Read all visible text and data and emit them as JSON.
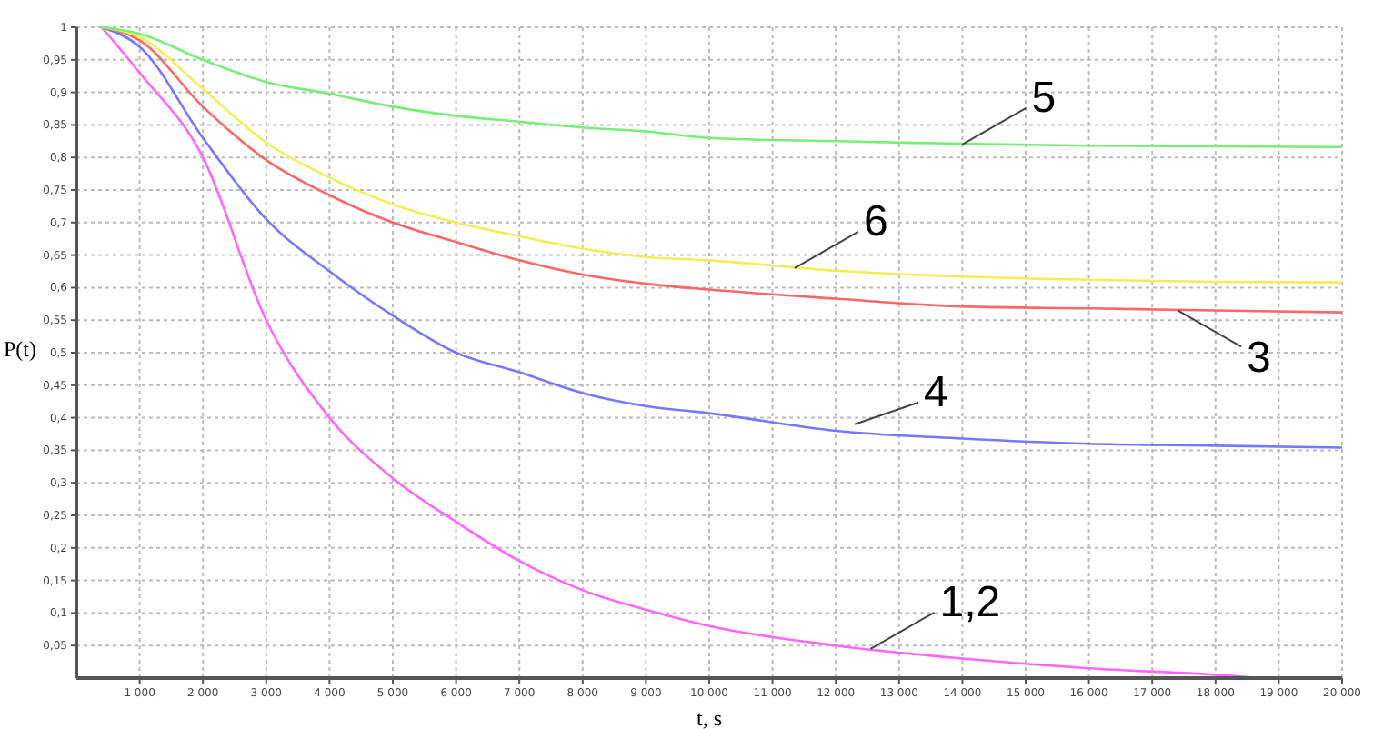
{
  "chart_data": {
    "type": "line",
    "xlabel": "t, s",
    "ylabel": "P(t)",
    "xlim": [
      0,
      20000
    ],
    "ylim": [
      0,
      1
    ],
    "xticks": [
      {
        "value": 1000,
        "label": "1 000"
      },
      {
        "value": 2000,
        "label": "2 000"
      },
      {
        "value": 3000,
        "label": "3 000"
      },
      {
        "value": 4000,
        "label": "4 000"
      },
      {
        "value": 5000,
        "label": "5 000"
      },
      {
        "value": 6000,
        "label": "6 000"
      },
      {
        "value": 7000,
        "label": "7 000"
      },
      {
        "value": 8000,
        "label": "8 000"
      },
      {
        "value": 9000,
        "label": "9 000"
      },
      {
        "value": 10000,
        "label": "10 000"
      },
      {
        "value": 11000,
        "label": "11 000"
      },
      {
        "value": 12000,
        "label": "12 000"
      },
      {
        "value": 13000,
        "label": "13 000"
      },
      {
        "value": 14000,
        "label": "14 000"
      },
      {
        "value": 15000,
        "label": "15 000"
      },
      {
        "value": 16000,
        "label": "16 000"
      },
      {
        "value": 17000,
        "label": "17 000"
      },
      {
        "value": 18000,
        "label": "18 000"
      },
      {
        "value": 19000,
        "label": "19 000"
      },
      {
        "value": 20000,
        "label": "20 000"
      }
    ],
    "yticks": [
      {
        "value": 0.05,
        "label": "0,05"
      },
      {
        "value": 0.1,
        "label": "0,1"
      },
      {
        "value": 0.15,
        "label": "0,15"
      },
      {
        "value": 0.2,
        "label": "0,2"
      },
      {
        "value": 0.25,
        "label": "0,25"
      },
      {
        "value": 0.3,
        "label": "0,3"
      },
      {
        "value": 0.35,
        "label": "0,35"
      },
      {
        "value": 0.4,
        "label": "0,4"
      },
      {
        "value": 0.45,
        "label": "0,45"
      },
      {
        "value": 0.5,
        "label": "0,5"
      },
      {
        "value": 0.55,
        "label": "0,55"
      },
      {
        "value": 0.6,
        "label": "0,6"
      },
      {
        "value": 0.65,
        "label": "0,65"
      },
      {
        "value": 0.7,
        "label": "0,7"
      },
      {
        "value": 0.75,
        "label": "0,75"
      },
      {
        "value": 0.8,
        "label": "0,8"
      },
      {
        "value": 0.85,
        "label": "0,85"
      },
      {
        "value": 0.9,
        "label": "0,9"
      },
      {
        "value": 0.95,
        "label": "0,95"
      },
      {
        "value": 1,
        "label": "1"
      }
    ],
    "grid": true,
    "marker": "none",
    "line_style": "solid",
    "x": [
      400,
      1000,
      2000,
      3000,
      4000,
      5000,
      6000,
      7000,
      8000,
      9000,
      10000,
      12000,
      14000,
      16000,
      18000,
      20000
    ],
    "series": [
      {
        "color": "#ff66ff",
        "x": [
          400,
          1000,
          2000,
          3000,
          4000,
          5000,
          6000,
          7000,
          8000,
          9000,
          10000,
          12000,
          14000,
          16000,
          18000,
          18700
        ],
        "values": [
          1,
          0.93,
          0.8,
          0.55,
          0.4,
          0.307,
          0.24,
          0.18,
          0.135,
          0.105,
          0.08,
          0.05,
          0.03,
          0.015,
          0.005,
          0
        ]
      },
      {
        "color": "#7777ff",
        "values": [
          1,
          0.97,
          0.83,
          0.705,
          0.625,
          0.557,
          0.5,
          0.47,
          0.438,
          0.418,
          0.407,
          0.38,
          0.368,
          0.36,
          0.357,
          0.354
        ]
      },
      {
        "color": "#ff6666",
        "values": [
          1,
          0.98,
          0.878,
          0.796,
          0.742,
          0.7,
          0.67,
          0.642,
          0.62,
          0.606,
          0.597,
          0.583,
          0.571,
          0.568,
          0.565,
          0.562
        ]
      },
      {
        "color": "#f2ee55",
        "values": [
          1,
          0.985,
          0.905,
          0.823,
          0.769,
          0.728,
          0.7,
          0.679,
          0.66,
          0.647,
          0.642,
          0.626,
          0.617,
          0.612,
          0.609,
          0.608
        ]
      },
      {
        "color": "#77ee77",
        "values": [
          1,
          0.99,
          0.95,
          0.916,
          0.898,
          0.878,
          0.864,
          0.855,
          0.846,
          0.84,
          0.83,
          0.825,
          0.821,
          0.818,
          0.817,
          0.816
        ]
      }
    ],
    "annotations": [
      {
        "text": "5",
        "x": 14000,
        "y": 0.82
      },
      {
        "text": "6",
        "x": 11350,
        "y": 0.63
      },
      {
        "text": "3",
        "x": 17400,
        "y": 0.565
      },
      {
        "text": "4",
        "x": 12300,
        "y": 0.39
      },
      {
        "text": "1,2",
        "x": 12550,
        "y": 0.045
      }
    ]
  }
}
